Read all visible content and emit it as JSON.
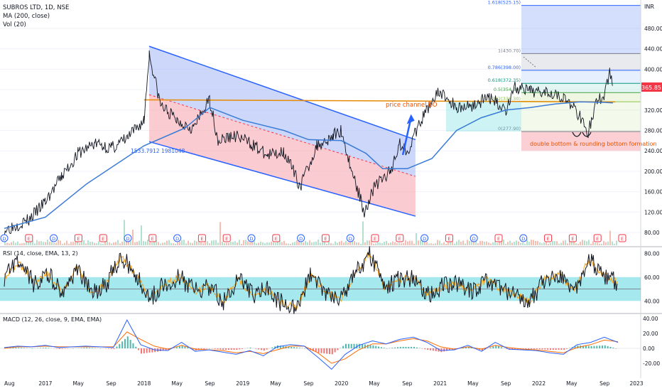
{
  "header": {
    "symbol_line": "SUBROS LTD, 1D, NSE",
    "ma_label": "MA (200, close)",
    "vol_label": "Vol (20)",
    "currency": "INR"
  },
  "colors": {
    "price": "#131722",
    "ma": "#3a7bd5",
    "rsi_line": "#131722",
    "rsi_signal": "#f5a623",
    "rsi_band": "#5bd6de",
    "macd_line": "#2962ff",
    "macd_signal": "#ff6d00",
    "hist_up": "#26a69a",
    "hist_down": "#ef5350",
    "resistance": "#e68a00",
    "channel_blue": "#aabdf7",
    "channel_red": "#f7a8b0",
    "annotation": "#e65100",
    "arrow": "#2962ff",
    "last_price_badge": "#f23645"
  },
  "chart_data": [
    {
      "type": "line",
      "title": "SUBROS LTD, 1D, NSE",
      "x_axis_labels": [
        "Aug",
        "2017",
        "May",
        "Sep",
        "2018",
        "May",
        "Sep",
        "2019",
        "May",
        "Sep",
        "2020",
        "May",
        "Sep",
        "2021",
        "May",
        "Sep",
        "2022",
        "May",
        "Sep",
        "2023"
      ],
      "y_axis_ticks": [
        80,
        120,
        160,
        200,
        240,
        280,
        320,
        360,
        400,
        440,
        480
      ],
      "ylim": [
        60,
        520
      ],
      "y_unit": "INR",
      "last_price": 365.85,
      "series": [
        {
          "name": "Price",
          "x": [
            "2016-08",
            "2016-11",
            "2017-01",
            "2017-03",
            "2017-05",
            "2017-07",
            "2017-09",
            "2017-11",
            "2018-01",
            "2018-01-20",
            "2018-03",
            "2018-05",
            "2018-07",
            "2018-09",
            "2018-10",
            "2018-12",
            "2019-02",
            "2019-04",
            "2019-06",
            "2019-08",
            "2019-10",
            "2019-12",
            "2020-01",
            "2020-02",
            "2020-03-25",
            "2020-05",
            "2020-07",
            "2020-08",
            "2020-09",
            "2020-10",
            "2020-12",
            "2021-01",
            "2021-03",
            "2021-05",
            "2021-07",
            "2021-09",
            "2021-10",
            "2021-12",
            "2022-02",
            "2022-04",
            "2022-06",
            "2022-07",
            "2022-08",
            "2022-09",
            "2022-09-20",
            "2022-10"
          ],
          "values": [
            85,
            105,
            140,
            190,
            235,
            255,
            245,
            265,
            300,
            430,
            330,
            300,
            285,
            340,
            260,
            270,
            255,
            230,
            240,
            170,
            250,
            270,
            280,
            215,
            120,
            170,
            200,
            255,
            240,
            275,
            340,
            355,
            325,
            330,
            345,
            320,
            365,
            355,
            360,
            345,
            310,
            275,
            335,
            350,
            395,
            368
          ]
        },
        {
          "name": "MA (200, close)",
          "x": [
            "2016-08",
            "2017-01",
            "2017-06",
            "2018-01",
            "2018-06",
            "2018-09",
            "2019-01",
            "2019-06",
            "2019-09",
            "2020-01",
            "2020-04",
            "2020-06",
            "2020-09",
            "2020-12",
            "2021-03",
            "2021-06",
            "2021-09",
            "2021-12",
            "2022-03",
            "2022-06",
            "2022-09",
            "2022-10"
          ],
          "values": [
            88,
            110,
            175,
            250,
            285,
            325,
            300,
            280,
            262,
            260,
            235,
            205,
            205,
            225,
            280,
            305,
            320,
            325,
            332,
            336,
            335,
            334
          ]
        }
      ],
      "annotations": {
        "channel_label": "price channel BO",
        "pattern_label": "double bottom & rounding bottom formation",
        "channel_start_label": "1533.7912 1981048"
      },
      "fibonacci": [
        {
          "ratio": "1.618",
          "price": 525.15
        },
        {
          "ratio": "1",
          "price": 430.7
        },
        {
          "ratio": "0.786",
          "price": 398.0
        },
        {
          "ratio": "0.618",
          "price": 372.35
        },
        {
          "ratio": "0.5",
          "price": 354.3
        },
        {
          "ratio": "0.382",
          "price": 336.3
        },
        {
          "ratio": "0",
          "price": 277.9
        }
      ],
      "event_markers": [
        "D",
        "E",
        "D",
        "E",
        "E",
        "D",
        "E",
        "D",
        "E",
        "E",
        "D",
        "E",
        "D",
        "E",
        "D",
        "E",
        "E",
        "D",
        "E",
        "D",
        "E",
        "D",
        "E",
        "E",
        "E",
        "E"
      ]
    },
    {
      "type": "line",
      "title": "RSI (14, close, EMA, 13, 2)",
      "y_axis_ticks": [
        "80.00",
        "60.00",
        "40.00"
      ],
      "ylim": [
        30,
        85
      ],
      "band": [
        40,
        60
      ],
      "series": [
        {
          "name": "RSI",
          "values": [
            60,
            72,
            55,
            62,
            48,
            68,
            45,
            55,
            78,
            62,
            42,
            55,
            60,
            48,
            52,
            40,
            58,
            45,
            50,
            38,
            35,
            62,
            48,
            40,
            62,
            80,
            52,
            58,
            60,
            45,
            52,
            55,
            48,
            58,
            50,
            45,
            40,
            58,
            62,
            48,
            75,
            62,
            55
          ]
        }
      ]
    },
    {
      "type": "bar",
      "title": "MACD (12, 26, close, 9, EMA, EMA)",
      "y_axis_ticks": [
        "40.00",
        "20.00",
        "0.00",
        "-20.00"
      ],
      "ylim": [
        -30,
        45
      ],
      "series": [
        {
          "name": "MACD",
          "values": [
            1,
            3,
            2,
            4,
            1,
            2,
            3,
            2,
            1,
            38,
            5,
            -2,
            -3,
            8,
            -4,
            -2,
            -5,
            -8,
            -3,
            -10,
            2,
            5,
            3,
            -12,
            -28,
            -8,
            4,
            10,
            6,
            12,
            15,
            8,
            -3,
            -2,
            4,
            -4,
            8,
            -1,
            -2,
            -3,
            -6,
            -8,
            5,
            8,
            15,
            8
          ]
        },
        {
          "name": "Signal",
          "values": [
            0,
            2,
            2,
            3,
            2,
            2,
            2,
            2,
            2,
            22,
            12,
            3,
            -1,
            4,
            -1,
            -2,
            -3,
            -6,
            -4,
            -7,
            -2,
            3,
            3,
            -6,
            -20,
            -14,
            -2,
            6,
            6,
            10,
            13,
            10,
            2,
            -1,
            2,
            -1,
            4,
            1,
            -1,
            -2,
            -4,
            -6,
            1,
            5,
            11,
            9
          ]
        }
      ]
    }
  ]
}
